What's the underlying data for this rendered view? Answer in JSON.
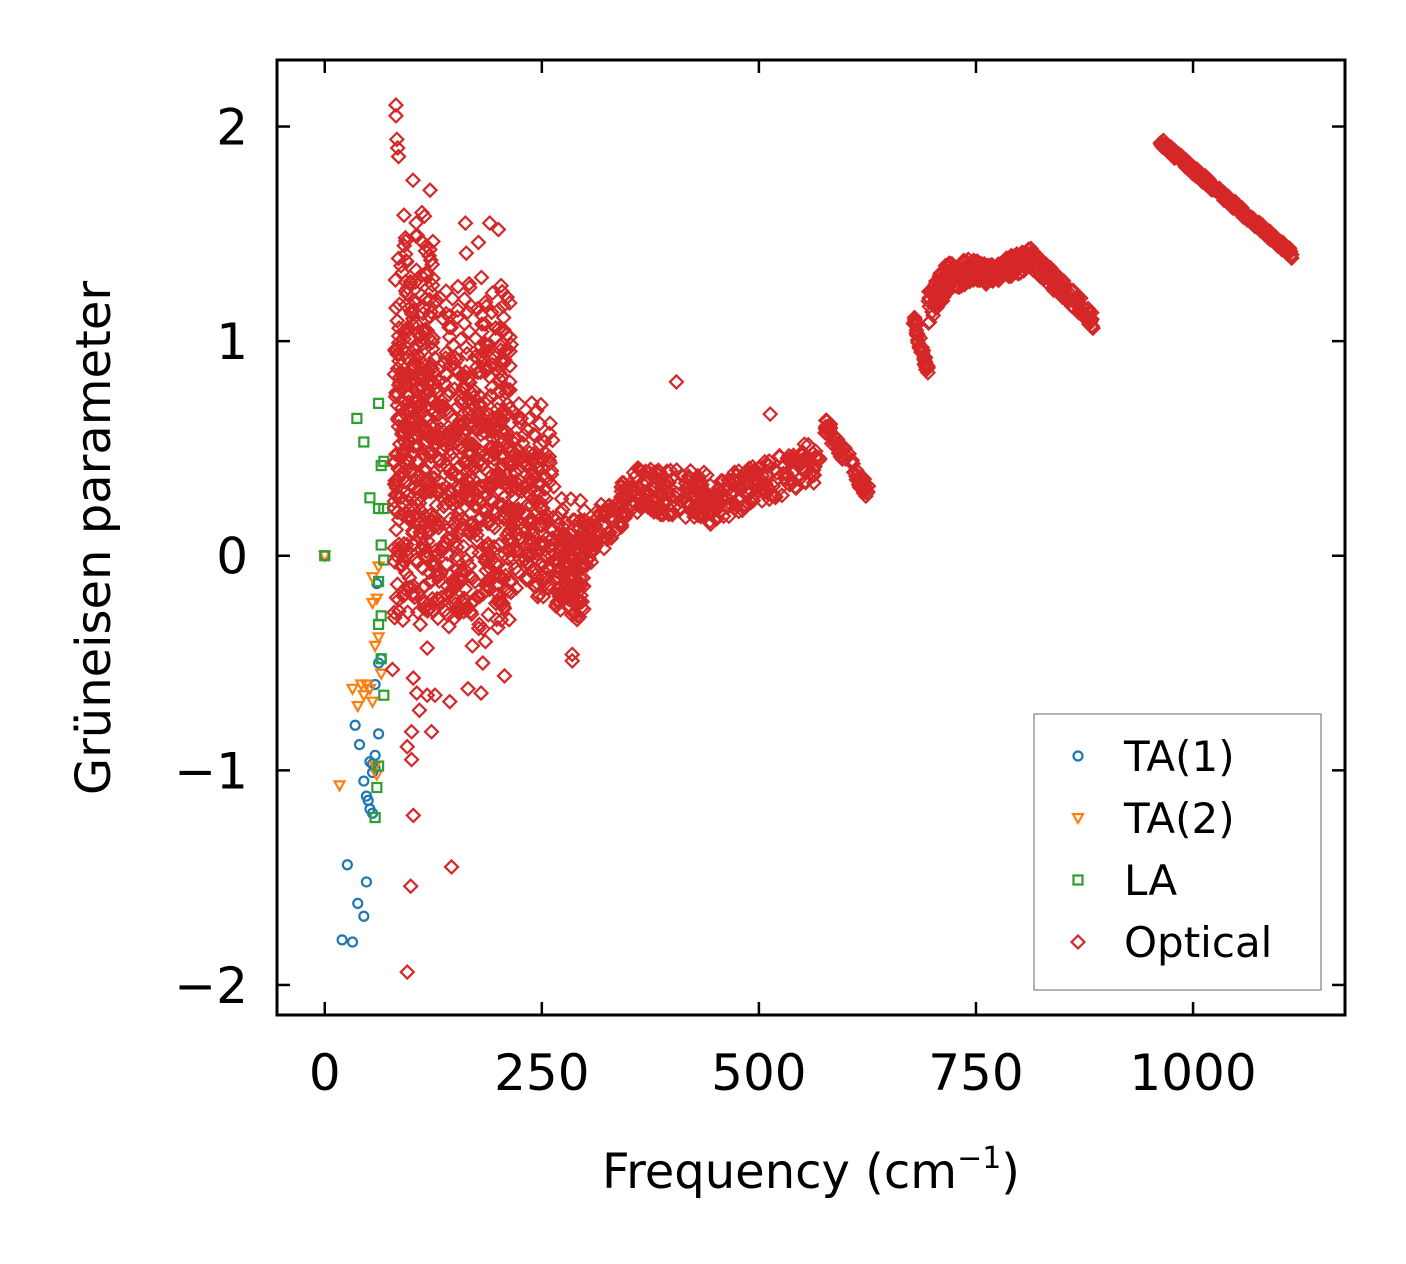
{
  "chart_data": {
    "type": "scatter",
    "xlabel": "Frequency (cm",
    "xlabel_sup": "−1",
    "xlabel_suffix": ")",
    "ylabel": "Grüneisen parameter",
    "xlim": [
      -55,
      1175
    ],
    "ylim": [
      -2.14,
      2.31
    ],
    "xticks": [
      0,
      250,
      500,
      750,
      1000
    ],
    "xtick_labels": [
      "0",
      "250",
      "500",
      "750",
      "1000"
    ],
    "yticks": [
      -2,
      -1,
      0,
      1,
      2
    ],
    "ytick_labels": [
      "−2",
      "−1",
      "0",
      "1",
      "2"
    ],
    "legend_position": "lower-right",
    "series": [
      {
        "name": "TA(1)",
        "marker": "circle",
        "color": "#1f77b4",
        "points": [
          [
            0,
            0
          ],
          [
            20,
            -1.79
          ],
          [
            32,
            -1.8
          ],
          [
            26,
            -1.44
          ],
          [
            38,
            -1.62
          ],
          [
            45,
            -1.68
          ],
          [
            48,
            -1.52
          ],
          [
            40,
            -0.88
          ],
          [
            35,
            -0.79
          ],
          [
            45,
            -1.05
          ],
          [
            50,
            -1.14
          ],
          [
            52,
            -1.18
          ],
          [
            55,
            -1.2
          ],
          [
            48,
            -1.12
          ],
          [
            55,
            -0.97
          ],
          [
            58,
            -0.93
          ],
          [
            58,
            -0.99
          ],
          [
            62,
            -0.83
          ],
          [
            58,
            -0.6
          ],
          [
            62,
            -0.5
          ],
          [
            65,
            -0.48
          ],
          [
            60,
            -0.13
          ],
          [
            52,
            -0.96
          ],
          [
            55,
            -1.01
          ]
        ]
      },
      {
        "name": "TA(2)",
        "marker": "triangle-down",
        "color": "#ff7f0e",
        "points": [
          [
            0,
            0
          ],
          [
            17,
            -1.07
          ],
          [
            32,
            -0.62
          ],
          [
            38,
            -0.7
          ],
          [
            42,
            -0.6
          ],
          [
            45,
            -0.65
          ],
          [
            48,
            -0.6
          ],
          [
            55,
            -0.68
          ],
          [
            58,
            -0.42
          ],
          [
            62,
            -0.38
          ],
          [
            55,
            -0.22
          ],
          [
            60,
            -0.2
          ],
          [
            55,
            -0.1
          ],
          [
            62,
            -0.05
          ],
          [
            58,
            -0.98
          ],
          [
            60,
            -1.02
          ],
          [
            52,
            -0.62
          ],
          [
            65,
            -0.55
          ]
        ]
      },
      {
        "name": "LA",
        "marker": "square",
        "color": "#2ca02c",
        "points": [
          [
            0,
            0
          ],
          [
            37,
            0.64
          ],
          [
            45,
            0.53
          ],
          [
            52,
            0.27
          ],
          [
            62,
            0.71
          ],
          [
            65,
            0.42
          ],
          [
            68,
            0.44
          ],
          [
            62,
            0.22
          ],
          [
            68,
            0.22
          ],
          [
            65,
            0.05
          ],
          [
            68,
            -0.02
          ],
          [
            62,
            -0.12
          ],
          [
            65,
            -0.28
          ],
          [
            62,
            -0.32
          ],
          [
            65,
            -0.48
          ],
          [
            68,
            -0.65
          ],
          [
            60,
            -1.08
          ],
          [
            58,
            -1.22
          ],
          [
            62,
            -0.98
          ]
        ]
      },
      {
        "name": "Optical",
        "marker": "diamond",
        "color": "#d62728",
        "dense_regions": [
          {
            "x_range": [
              80,
              125
            ],
            "y_range": [
              -0.3,
              1.8
            ],
            "n": 380
          },
          {
            "x_range": [
              125,
              175
            ],
            "y_range": [
              -0.3,
              1.4
            ],
            "n": 300
          },
          {
            "x_range": [
              175,
              215
            ],
            "y_range": [
              -0.35,
              1.35
            ],
            "n": 260
          },
          {
            "x_range": [
              215,
              265
            ],
            "y_range": [
              -0.2,
              0.8
            ],
            "n": 180
          },
          {
            "x_range": [
              265,
              300
            ],
            "y_range": [
              -0.3,
              0.3
            ],
            "n": 140
          }
        ],
        "bands": [
          {
            "x": [
              300,
              370
            ],
            "y": [
              0.05,
              0.35
            ],
            "width": 0.22,
            "n": 120
          },
          {
            "x": [
              370,
              440
            ],
            "y": [
              0.3,
              0.28
            ],
            "width": 0.22,
            "n": 120
          },
          {
            "x": [
              440,
              570
            ],
            "y": [
              0.24,
              0.45
            ],
            "width": 0.2,
            "n": 170
          },
          {
            "x": [
              575,
              628
            ],
            "y": [
              0.62,
              0.28
            ],
            "width": 0.08,
            "n": 70
          },
          {
            "x": [
              678,
              695
            ],
            "y": [
              1.1,
              0.85
            ],
            "width": 0.06,
            "n": 40
          },
          {
            "x": [
              695,
              720
            ],
            "y": [
              1.15,
              1.32
            ],
            "width": 0.15,
            "n": 70
          },
          {
            "x": [
              720,
              760
            ],
            "y": [
              1.3,
              1.34
            ],
            "width": 0.12,
            "n": 80
          },
          {
            "x": [
              760,
              810
            ],
            "y": [
              1.3,
              1.38
            ],
            "width": 0.1,
            "n": 80
          },
          {
            "x": [
              810,
              885
            ],
            "y": [
              1.4,
              1.1
            ],
            "width": 0.09,
            "n": 110
          },
          {
            "x": [
              962,
              1115
            ],
            "y": [
              1.93,
              1.4
            ],
            "width": 0.04,
            "n": 240
          }
        ],
        "scatter_points": [
          [
            82,
            2.1
          ],
          [
            82,
            2.05
          ],
          [
            83,
            1.94
          ],
          [
            84,
            1.9
          ],
          [
            85,
            1.86
          ],
          [
            162,
            1.55
          ],
          [
            190,
            1.55
          ],
          [
            200,
            1.52
          ],
          [
            177,
            1.46
          ],
          [
            105,
            1.49
          ],
          [
            116,
            1.42
          ],
          [
            163,
            1.41
          ],
          [
            167,
            1.25
          ],
          [
            248,
            0.52
          ],
          [
            405,
            0.81
          ],
          [
            513,
            0.66
          ],
          [
            285,
            -0.46
          ],
          [
            285,
            -0.49
          ],
          [
            102,
            -1.21
          ],
          [
            146,
            -1.45
          ],
          [
            99,
            -1.54
          ],
          [
            95,
            -1.94
          ],
          [
            95,
            -0.89
          ],
          [
            100,
            -0.95
          ],
          [
            100,
            -0.82
          ],
          [
            123,
            -0.82
          ],
          [
            118,
            -0.65
          ],
          [
            127,
            -0.65
          ],
          [
            144,
            -0.68
          ],
          [
            165,
            -0.62
          ],
          [
            180,
            -0.64
          ],
          [
            182,
            -0.5
          ],
          [
            207,
            -0.56
          ],
          [
            118,
            -0.43
          ],
          [
            78,
            -0.53
          ],
          [
            102,
            -0.57
          ],
          [
            109,
            -0.72
          ],
          [
            106,
            -0.64
          ],
          [
            90,
            -0.3
          ],
          [
            110,
            -0.32
          ],
          [
            120,
            -0.25
          ],
          [
            143,
            -0.33
          ],
          [
            160,
            -0.2
          ],
          [
            178,
            -0.32
          ],
          [
            158,
            -0.07
          ],
          [
            190,
            -0.12
          ],
          [
            130,
            -0.1
          ],
          [
            150,
            -0.15
          ],
          [
            200,
            -0.18
          ],
          [
            170,
            -0.42
          ],
          [
            185,
            -0.4
          ],
          [
            100,
            -0.18
          ],
          [
            88,
            -0.05
          ]
        ]
      }
    ]
  }
}
